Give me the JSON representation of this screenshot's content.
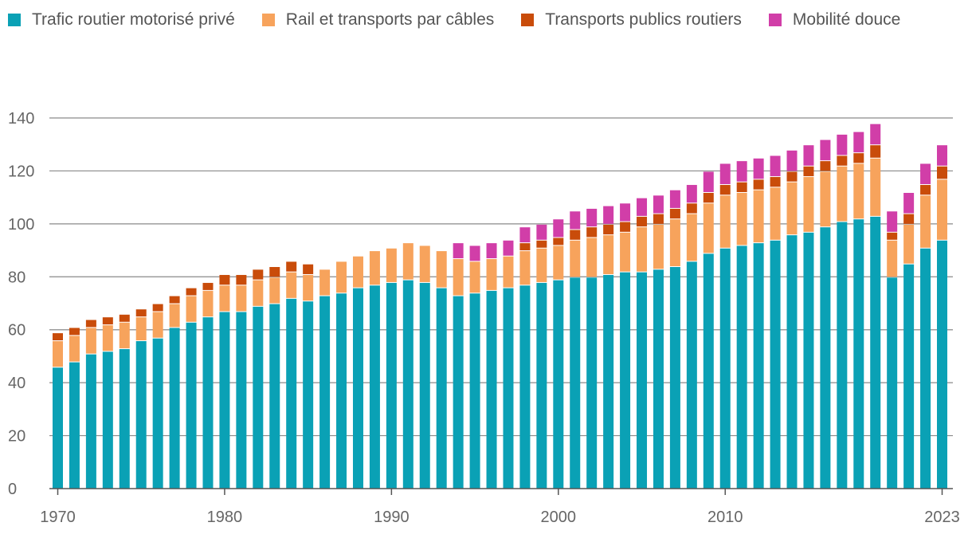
{
  "chart_data": {
    "type": "bar",
    "stacked": true,
    "x": [
      1970,
      1971,
      1972,
      1973,
      1974,
      1975,
      1976,
      1977,
      1978,
      1979,
      1980,
      1981,
      1982,
      1983,
      1984,
      1985,
      1986,
      1987,
      1988,
      1989,
      1990,
      1991,
      1992,
      1993,
      1994,
      1995,
      1996,
      1997,
      1998,
      1999,
      2000,
      2001,
      2002,
      2003,
      2004,
      2005,
      2006,
      2007,
      2008,
      2009,
      2010,
      2011,
      2012,
      2013,
      2014,
      2015,
      2016,
      2017,
      2018,
      2019,
      2020,
      2021,
      2022,
      2023
    ],
    "x_tick_labels": [
      "1970",
      "1980",
      "1990",
      "2000",
      "2010",
      "2023"
    ],
    "y_ticks": [
      "0",
      "20",
      "40",
      "60",
      "80",
      "100",
      "120",
      "140"
    ],
    "ylim": [
      0,
      140
    ],
    "legend_position": "top",
    "grid": true,
    "series": [
      {
        "name": "Trafic routier motorisé privé",
        "color": "#0aa1b5",
        "values": [
          46,
          48,
          51,
          52,
          53,
          56,
          57,
          61,
          63,
          65,
          67,
          67,
          69,
          70,
          72,
          71,
          73,
          74,
          76,
          77,
          78,
          79,
          78,
          76,
          73,
          74,
          75,
          76,
          77,
          78,
          79,
          80,
          80,
          81,
          82,
          82,
          83,
          84,
          86,
          89,
          91,
          92,
          93,
          94,
          96,
          97,
          99,
          101,
          102,
          103,
          80,
          85,
          91,
          94
        ]
      },
      {
        "name": "Rail et transports par câbles",
        "color": "#f7a35c",
        "values": [
          10,
          10,
          10,
          10,
          10,
          9,
          10,
          9,
          10,
          10,
          10,
          10,
          10,
          10,
          10,
          10,
          10,
          12,
          12,
          13,
          13,
          14,
          14,
          14,
          14,
          12,
          12,
          12,
          13,
          13,
          13,
          14,
          15,
          15,
          15,
          17,
          17,
          18,
          18,
          19,
          20,
          20,
          20,
          20,
          20,
          21,
          21,
          21,
          21,
          22,
          14,
          15,
          20,
          23
        ]
      },
      {
        "name": "Transports publics routiers",
        "color": "#c94c0a",
        "values": [
          3,
          3,
          3,
          3,
          3,
          3,
          3,
          3,
          3,
          3,
          4,
          4,
          4,
          4,
          4,
          4,
          0,
          0,
          0,
          0,
          0,
          0,
          0,
          0,
          0,
          0,
          0,
          0,
          3,
          3,
          3,
          4,
          4,
          4,
          4,
          4,
          4,
          4,
          4,
          4,
          4,
          4,
          4,
          4,
          4,
          4,
          4,
          4,
          4,
          5,
          3,
          4,
          4,
          5
        ]
      },
      {
        "name": "Mobilité douce",
        "color": "#d13ea8",
        "values": [
          0,
          0,
          0,
          0,
          0,
          0,
          0,
          0,
          0,
          0,
          0,
          0,
          0,
          0,
          0,
          0,
          0,
          0,
          0,
          0,
          0,
          0,
          0,
          0,
          6,
          6,
          6,
          6,
          6,
          6,
          7,
          7,
          7,
          7,
          7,
          7,
          7,
          7,
          7,
          8,
          8,
          8,
          8,
          8,
          8,
          8,
          8,
          8,
          8,
          8,
          8,
          8,
          8,
          8
        ]
      }
    ]
  }
}
